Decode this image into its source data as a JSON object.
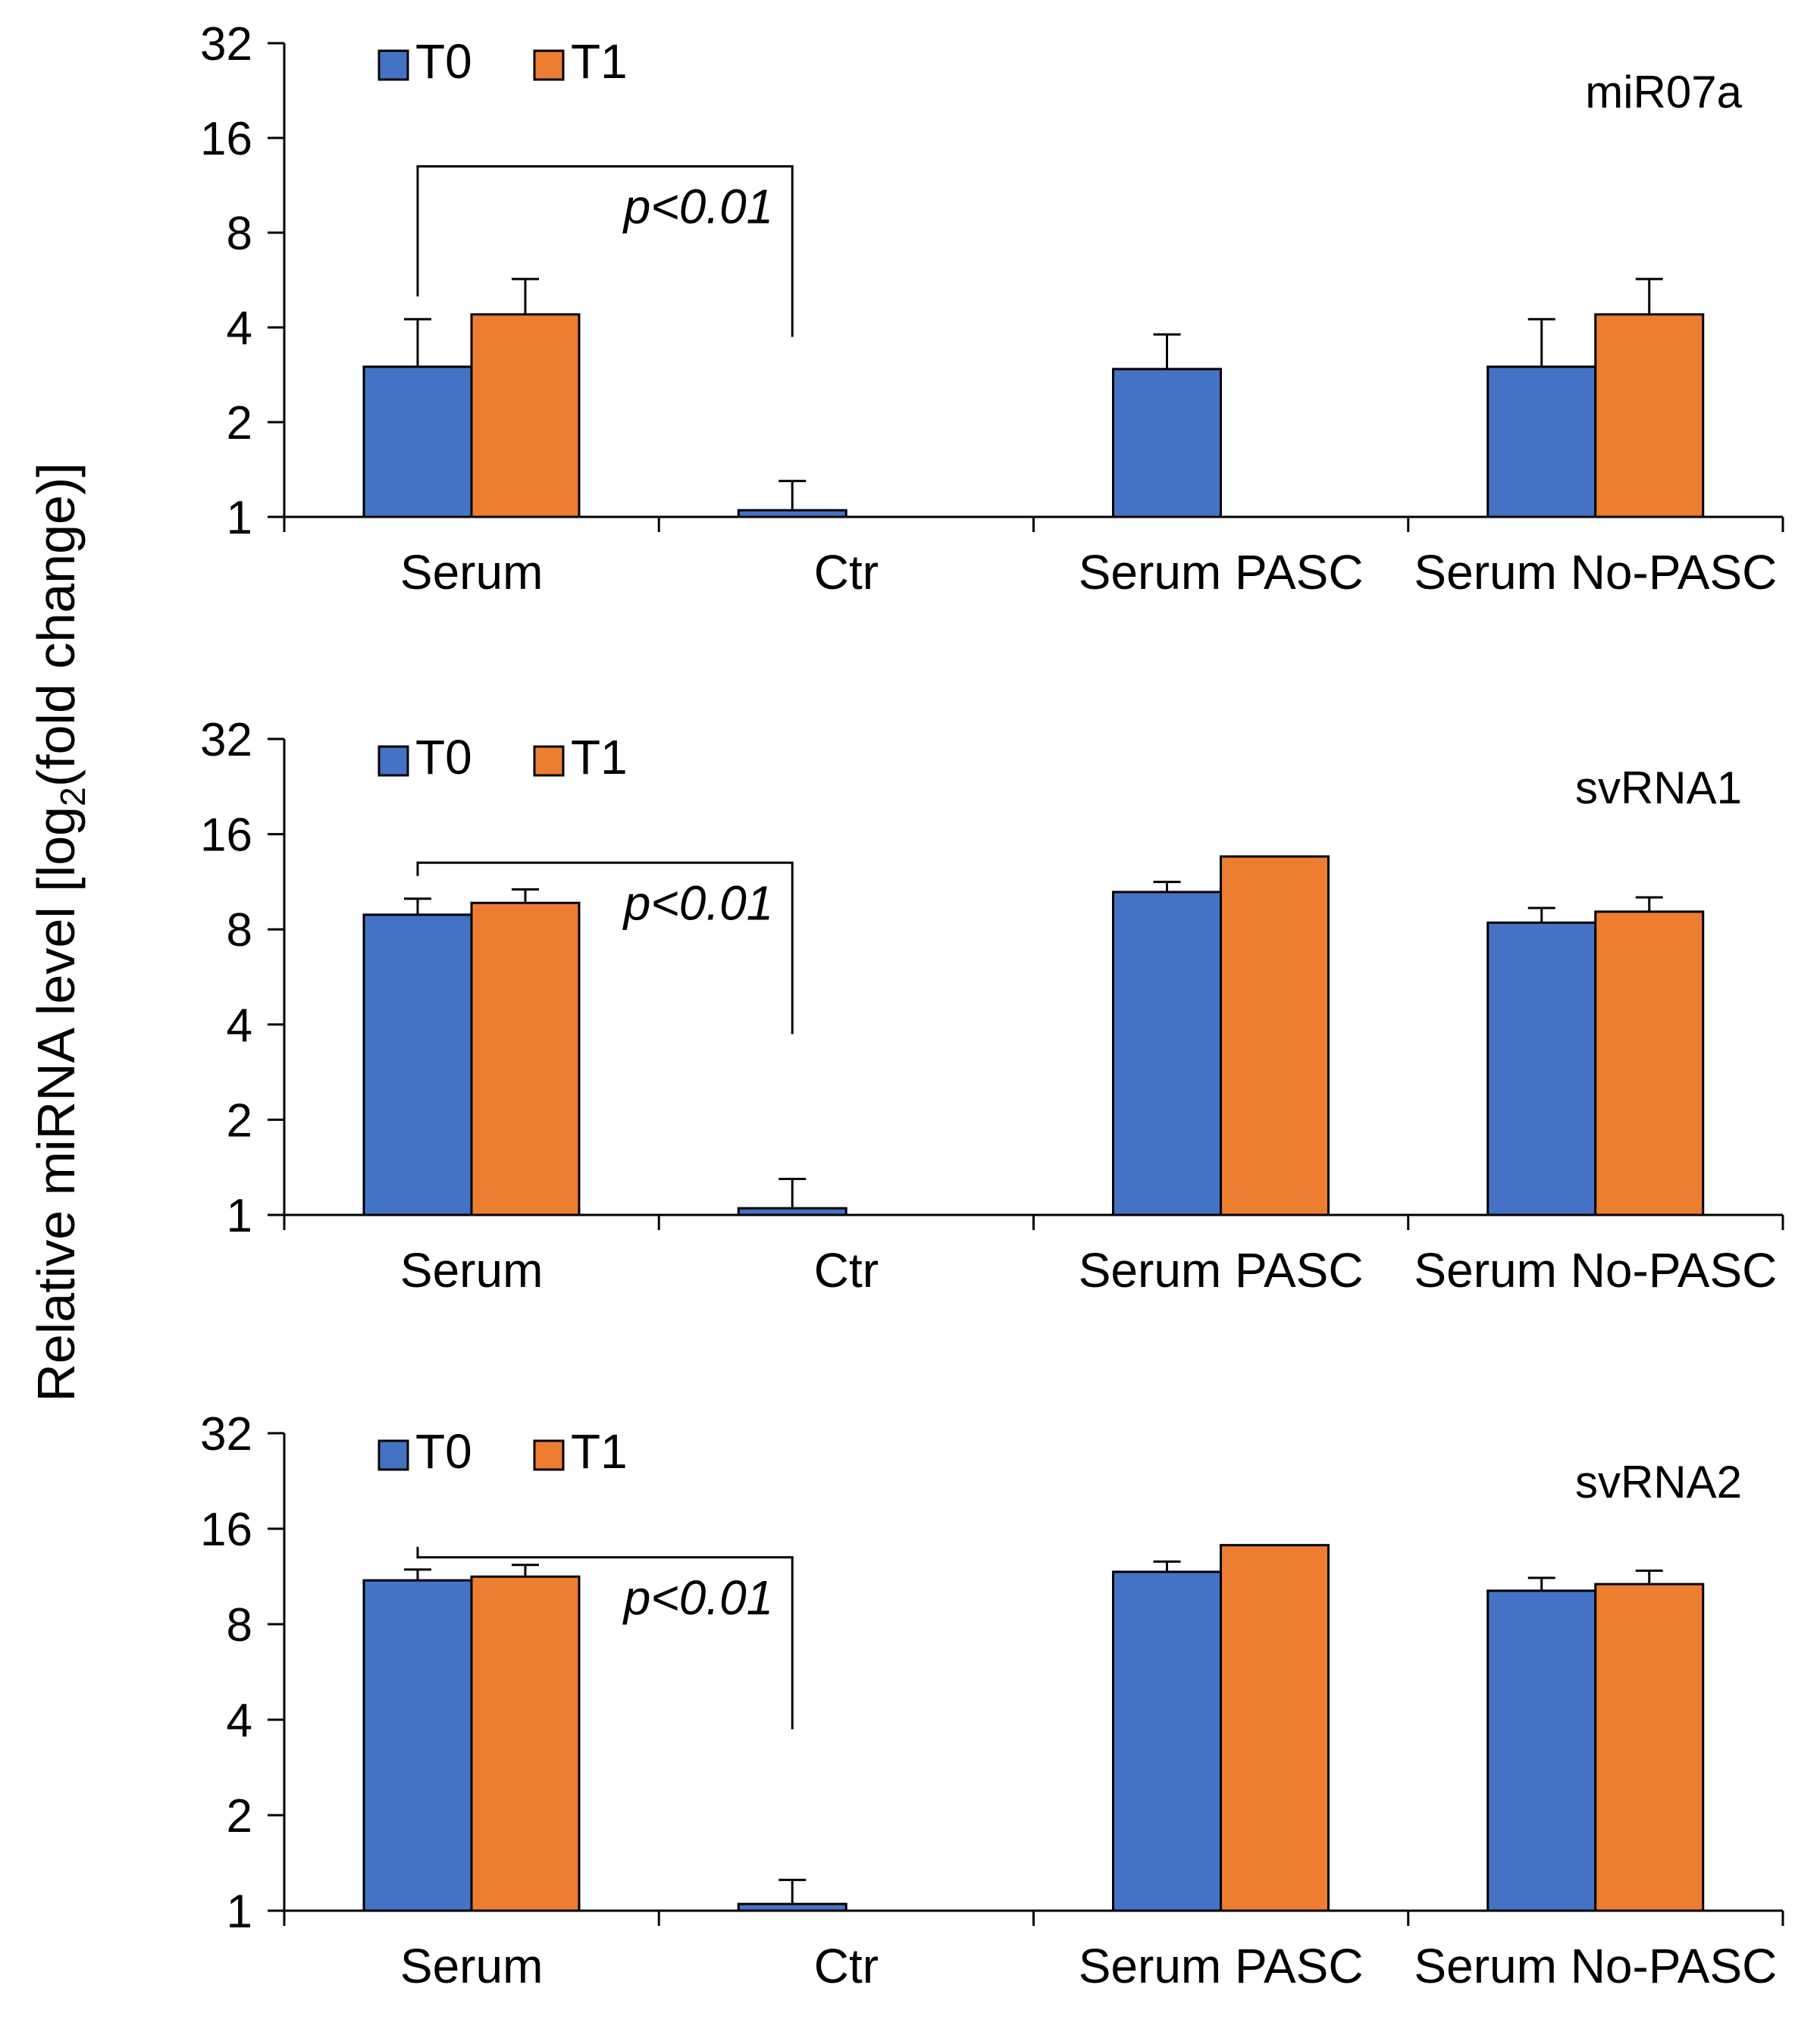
{
  "chart_data": {
    "type": "bar",
    "ylabel_prefix": "Relative miRNA level [log",
    "ylabel_sub": "2",
    "ylabel_suffix": "(fold change)]",
    "y_scale": "log2",
    "ylim": [
      1,
      32
    ],
    "yticks": [
      1,
      2,
      4,
      8,
      16,
      32
    ],
    "categories": [
      "Serum",
      "Ctr",
      "Serum PASC",
      "Serum No-PASC"
    ],
    "legend": [
      {
        "name": "T0",
        "color": "#4472C4"
      },
      {
        "name": "T1",
        "color": "#ED7D31"
      }
    ],
    "panels": [
      {
        "title": "miR07a",
        "annotation": "p<0.01",
        "bracket_between": [
          "Serum",
          "Ctr"
        ],
        "series": [
          {
            "name": "T0",
            "values": [
              3.0,
              1.05,
              2.95,
              3.0
            ],
            "errors": [
              1.25,
              0.25,
              0.85,
              1.25
            ]
          },
          {
            "name": "T1",
            "values": [
              4.4,
              null,
              null,
              4.4
            ],
            "errors": [
              1.3,
              null,
              null,
              1.3
            ]
          }
        ]
      },
      {
        "title": "svRNA1",
        "annotation": "p<0.01",
        "bracket_between": [
          "Serum",
          "Ctr"
        ],
        "series": [
          {
            "name": "T0",
            "values": [
              8.9,
              1.05,
              10.5,
              8.4
            ],
            "errors": [
              1.1,
              0.25,
              0.8,
              0.95
            ]
          },
          {
            "name": "T1",
            "values": [
              9.7,
              null,
              13.6,
              9.1
            ],
            "errors": [
              1.0,
              null,
              null,
              1.0
            ]
          }
        ]
      },
      {
        "title": "svRNA2",
        "annotation": "p<0.01",
        "bracket_between": [
          "Serum",
          "Ctr"
        ],
        "series": [
          {
            "name": "T0",
            "values": [
              11.0,
              1.05,
              11.7,
              10.2
            ],
            "errors": [
              0.9,
              0.2,
              0.9,
              1.0
            ]
          },
          {
            "name": "T1",
            "values": [
              11.3,
              null,
              14.2,
              10.7
            ],
            "errors": [
              1.0,
              null,
              null,
              1.1
            ]
          }
        ]
      }
    ]
  }
}
